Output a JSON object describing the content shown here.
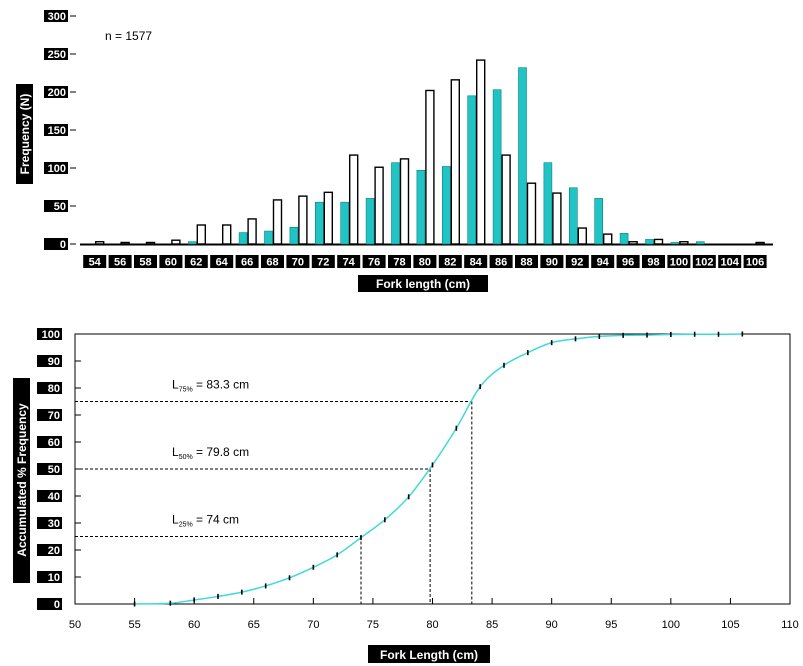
{
  "chart_data": [
    {
      "type": "bar",
      "annotation": "n = 1577",
      "xlabel": "Fork length (cm)",
      "ylabel": "Frequency (N)",
      "ylim": [
        0,
        300
      ],
      "yticks": [
        0,
        50,
        100,
        150,
        200,
        250,
        300
      ],
      "categories": [
        "54",
        "56",
        "58",
        "60",
        "62",
        "64",
        "66",
        "68",
        "70",
        "72",
        "74",
        "76",
        "78",
        "80",
        "82",
        "84",
        "86",
        "88",
        "90",
        "92",
        "94",
        "96",
        "98",
        "100",
        "102",
        "104",
        "106"
      ],
      "series": [
        {
          "fill": "#20c4c4",
          "values": [
            0,
            0,
            0,
            0,
            3,
            0,
            15,
            17,
            22,
            55,
            55,
            60,
            107,
            97,
            102,
            195,
            203,
            232,
            107,
            74,
            60,
            14,
            6,
            2,
            3,
            0,
            0
          ]
        },
        {
          "fill": "#ffffff",
          "values": [
            3,
            2,
            2,
            5,
            25,
            25,
            33,
            58,
            63,
            68,
            117,
            101,
            112,
            202,
            216,
            242,
            117,
            80,
            67,
            21,
            13,
            3,
            6,
            3,
            0,
            0,
            2
          ]
        }
      ],
      "grid": false
    },
    {
      "type": "line",
      "xlabel": "Fork Length (cm)",
      "ylabel": "Accumulated % Frequency",
      "xlim": [
        50,
        110
      ],
      "ylim": [
        0,
        100
      ],
      "xticks": [
        50,
        55,
        60,
        65,
        70,
        75,
        80,
        85,
        90,
        95,
        100,
        105,
        110
      ],
      "yticks": [
        0,
        10,
        20,
        30,
        40,
        50,
        60,
        70,
        80,
        90,
        100
      ],
      "series": [
        {
          "x": [
            55,
            58,
            60,
            62,
            64,
            66,
            68,
            70,
            72,
            74,
            76,
            78,
            80,
            82,
            84,
            86,
            88,
            90,
            92,
            94,
            96,
            98,
            100,
            102,
            104,
            106
          ],
          "y": [
            0,
            0.3,
            1.5,
            2.8,
            4.4,
            6.7,
            9.7,
            13.6,
            18.2,
            24.6,
            31.2,
            39.7,
            51.5,
            65.1,
            80.5,
            88.4,
            93.1,
            96.8,
            98.2,
            99.1,
            99.5,
            99.6,
            99.8,
            99.9,
            99.9,
            100
          ]
        }
      ],
      "line_color": "#40d8d8",
      "grid": false,
      "annotations": [
        {
          "label": "L",
          "sub": "75%",
          "rest": " = 83.3 cm",
          "x": 83.3,
          "y": 75
        },
        {
          "label": "L",
          "sub": "50%",
          "rest": " = 79.8 cm",
          "x": 79.8,
          "y": 50
        },
        {
          "label": "L",
          "sub": "25%",
          "rest": " = 74 cm",
          "x": 74,
          "y": 25
        }
      ]
    }
  ]
}
